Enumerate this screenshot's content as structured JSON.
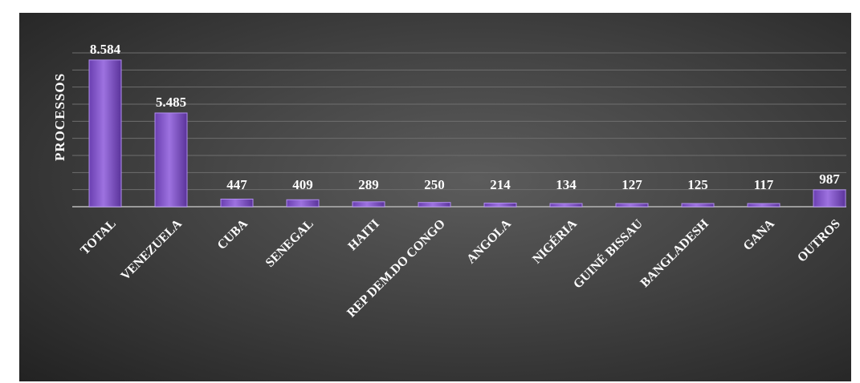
{
  "chart_data": {
    "type": "bar",
    "ylabel": "PROCESSOS",
    "categories": [
      "TOTAL",
      "VENEZUELA",
      "CUBA",
      "SENEGAL",
      "HAITI",
      "REP DEM.DO CONGO",
      "ANGOLA",
      "NIGÉRIA",
      "GUINÉ BISSAU",
      "BANGLADESH",
      "GANA",
      "OUTROS"
    ],
    "values": [
      8584,
      5485,
      447,
      409,
      289,
      250,
      214,
      134,
      127,
      125,
      117,
      987
    ],
    "value_labels": [
      "8.584",
      "5.485",
      "447",
      "409",
      "289",
      "250",
      "214",
      "134",
      "127",
      "125",
      "117",
      "987"
    ],
    "ylim": [
      0,
      9000
    ],
    "grid": true,
    "legend": "none",
    "bar_color": "#8a5ccf",
    "bar_highlight": "#b28ef0",
    "background": "#3c3c3c"
  }
}
